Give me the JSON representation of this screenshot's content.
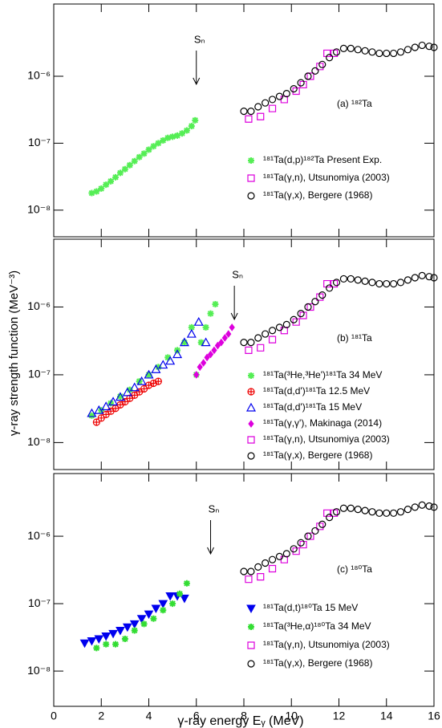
{
  "chart_data": [
    {
      "type": "scatter",
      "log_y": true,
      "xlim": [
        0,
        16
      ],
      "xticks": [
        0,
        2,
        4,
        6,
        8,
        10,
        12,
        14,
        16
      ],
      "ylim": [
        4e-09,
        1.2e-05
      ],
      "yticks": [
        {
          "value": 1e-08,
          "label": "10⁻⁸"
        },
        {
          "value": 1e-07,
          "label": "10⁻⁷"
        },
        {
          "value": 1e-06,
          "label": "10⁻⁶"
        }
      ],
      "ylabel": "γ-ray strength function (MeV⁻³)",
      "panel_label": "(a) ¹⁸²Ta",
      "threshold": {
        "label": "Sₙ",
        "x": 6.0
      },
      "legend": "lower right",
      "series": [
        {
          "name": "¹⁸¹Ta(d,p)¹⁸²Ta Present Exp.",
          "color": "#55ee55",
          "marker": "star",
          "x": [
            1.6,
            1.8,
            2.0,
            2.2,
            2.4,
            2.6,
            2.8,
            3.0,
            3.2,
            3.4,
            3.6,
            3.8,
            4.0,
            4.2,
            4.4,
            4.6,
            4.8,
            5.0,
            5.2,
            5.4,
            5.6,
            5.8,
            5.95
          ],
          "values": [
            1.8e-08,
            1.9e-08,
            2.1e-08,
            2.4e-08,
            2.7e-08,
            3.1e-08,
            3.6e-08,
            4.1e-08,
            4.7e-08,
            5.4e-08,
            6.2e-08,
            7e-08,
            8e-08,
            9e-08,
            1e-07,
            1.1e-07,
            1.2e-07,
            1.25e-07,
            1.3e-07,
            1.4e-07,
            1.55e-07,
            1.8e-07,
            2.2e-07
          ]
        },
        {
          "name": "¹⁸¹Ta(γ,n), Utsunomiya (2003)",
          "color": "#dd00dd",
          "marker": "open-square",
          "x": [
            8.2,
            8.7,
            9.2,
            9.7,
            10.2,
            10.5,
            10.8,
            11.2,
            11.5,
            11.8
          ],
          "values": [
            2.3e-07,
            2.5e-07,
            3.3e-07,
            4.5e-07,
            6e-07,
            7.5e-07,
            1e-06,
            1.4e-06,
            2.2e-06,
            2.2e-06
          ]
        },
        {
          "name": "¹⁸¹Ta(γ,x), Bergere (1968)",
          "color": "#000000",
          "marker": "open-circle",
          "x": [
            8.0,
            8.3,
            8.6,
            8.9,
            9.2,
            9.5,
            9.8,
            10.1,
            10.4,
            10.7,
            11.0,
            11.3,
            11.6,
            11.9,
            12.2,
            12.5,
            12.8,
            13.1,
            13.4,
            13.7,
            14.0,
            14.3,
            14.6,
            14.9,
            15.2,
            15.5,
            15.8,
            16.0
          ],
          "values": [
            3e-07,
            3e-07,
            3.5e-07,
            4e-07,
            4.5e-07,
            5e-07,
            5.5e-07,
            6.5e-07,
            8e-07,
            1e-06,
            1.2e-06,
            1.5e-06,
            1.9e-06,
            2.3e-06,
            2.6e-06,
            2.6e-06,
            2.5e-06,
            2.4e-06,
            2.3e-06,
            2.2e-06,
            2.2e-06,
            2.2e-06,
            2.3e-06,
            2.5e-06,
            2.7e-06,
            2.9e-06,
            2.8e-06,
            2.7e-06
          ]
        }
      ]
    },
    {
      "type": "scatter",
      "log_y": true,
      "xlim": [
        0,
        16
      ],
      "xticks": [
        0,
        2,
        4,
        6,
        8,
        10,
        12,
        14,
        16
      ],
      "ylim": [
        4e-09,
        1e-05
      ],
      "yticks": [
        {
          "value": 1e-08,
          "label": "10⁻⁸"
        },
        {
          "value": 1e-07,
          "label": "10⁻⁷"
        },
        {
          "value": 1e-06,
          "label": "10⁻⁶"
        }
      ],
      "panel_label": "(b) ¹⁸¹Ta",
      "threshold": {
        "label": "Sₙ",
        "x": 7.6
      },
      "legend": "lower right",
      "series": [
        {
          "name": "¹⁸¹Ta(³He,³He')¹⁸¹Ta 34 MeV",
          "color": "#55ee55",
          "marker": "star",
          "x": [
            1.6,
            2.0,
            2.4,
            2.8,
            3.2,
            3.6,
            4.0,
            4.4,
            4.8,
            5.2,
            5.5,
            5.8,
            6.0,
            6.2,
            6.4,
            6.6,
            6.8
          ],
          "values": [
            2.5e-08,
            3e-08,
            3.8e-08,
            4.8e-08,
            6e-08,
            8e-08,
            1e-07,
            1.3e-07,
            1.8e-07,
            2.3e-07,
            3e-07,
            5e-07,
            1e-07,
            3e-07,
            5e-07,
            8e-07,
            1.1e-06
          ]
        },
        {
          "name": "¹⁸¹Ta(d,d')¹⁸¹Ta 12.5 MeV",
          "color": "#ee0000",
          "marker": "circle-plus",
          "x": [
            1.8,
            2.0,
            2.2,
            2.4,
            2.6,
            2.8,
            3.0,
            3.2,
            3.4,
            3.6,
            3.8,
            4.0,
            4.2,
            4.4
          ],
          "values": [
            2e-08,
            2.3e-08,
            2.6e-08,
            2.9e-08,
            3.2e-08,
            3.6e-08,
            4e-08,
            4.5e-08,
            5e-08,
            5.6e-08,
            6.2e-08,
            7e-08,
            7.5e-08,
            8e-08
          ]
        },
        {
          "name": "¹⁸¹Ta(d,d')¹⁸¹Ta 15 MeV",
          "color": "#0000ee",
          "marker": "open-triangle",
          "x": [
            1.6,
            1.9,
            2.2,
            2.5,
            2.8,
            3.1,
            3.4,
            3.7,
            4.0,
            4.3,
            4.6,
            4.9,
            5.2,
            5.5,
            5.8,
            6.1,
            6.4
          ],
          "values": [
            2.7e-08,
            3e-08,
            3.4e-08,
            4e-08,
            4.7e-08,
            5.5e-08,
            6.5e-08,
            8e-08,
            1e-07,
            1.2e-07,
            1.4e-07,
            1.6e-07,
            2e-07,
            3e-07,
            4e-07,
            6e-07,
            3e-07
          ]
        },
        {
          "name": "¹⁸¹Ta(γ,γ'), Makinaga (2014)",
          "color": "#dd00dd",
          "marker": "diamond",
          "x": [
            6.0,
            6.15,
            6.3,
            6.45,
            6.6,
            6.75,
            6.9,
            7.05,
            7.2,
            7.35,
            7.5
          ],
          "values": [
            1e-07,
            1.3e-07,
            1.5e-07,
            1.8e-07,
            2e-07,
            2.3e-07,
            2.7e-07,
            3e-07,
            3.5e-07,
            4e-07,
            5e-07
          ]
        },
        {
          "name": "¹⁸¹Ta(γ,n), Utsunomiya (2003)",
          "color": "#dd00dd",
          "marker": "open-square",
          "x": [
            8.2,
            8.7,
            9.2,
            9.7,
            10.2,
            10.5,
            10.8,
            11.2,
            11.5,
            11.8
          ],
          "values": [
            2.3e-07,
            2.5e-07,
            3.3e-07,
            4.5e-07,
            6e-07,
            7.5e-07,
            1e-06,
            1.4e-06,
            2.2e-06,
            2.2e-06
          ]
        },
        {
          "name": "¹⁸¹Ta(γ,x), Bergere (1968)",
          "color": "#000000",
          "marker": "open-circle",
          "x": [
            8.0,
            8.3,
            8.6,
            8.9,
            9.2,
            9.5,
            9.8,
            10.1,
            10.4,
            10.7,
            11.0,
            11.3,
            11.6,
            11.9,
            12.2,
            12.5,
            12.8,
            13.1,
            13.4,
            13.7,
            14.0,
            14.3,
            14.6,
            14.9,
            15.2,
            15.5,
            15.8,
            16.0
          ],
          "values": [
            3e-07,
            3e-07,
            3.5e-07,
            4e-07,
            4.5e-07,
            5e-07,
            5.5e-07,
            6.5e-07,
            8e-07,
            1e-06,
            1.2e-06,
            1.5e-06,
            1.9e-06,
            2.3e-06,
            2.6e-06,
            2.6e-06,
            2.5e-06,
            2.4e-06,
            2.3e-06,
            2.2e-06,
            2.2e-06,
            2.2e-06,
            2.3e-06,
            2.5e-06,
            2.7e-06,
            2.9e-06,
            2.8e-06,
            2.7e-06
          ]
        }
      ]
    },
    {
      "type": "scatter",
      "log_y": true,
      "xlim": [
        0,
        16
      ],
      "xticks": [
        0,
        2,
        4,
        6,
        8,
        10,
        12,
        14,
        16
      ],
      "ylim": [
        3e-09,
        8.5e-06
      ],
      "yticks": [
        {
          "value": 1e-08,
          "label": "10⁻⁸"
        },
        {
          "value": 1e-07,
          "label": "10⁻⁷"
        },
        {
          "value": 1e-06,
          "label": "10⁻⁶"
        }
      ],
      "xlabel": "γ-ray energy Eᵧ (MeV)",
      "show_xtick_labels": true,
      "panel_label": "(c) ¹⁸⁰Ta",
      "threshold": {
        "label": "Sₙ",
        "x": 6.6
      },
      "legend": "lower right",
      "series": [
        {
          "name": "¹⁸¹Ta(d,t)¹⁸⁰Ta 15 MeV",
          "color": "#0000ee",
          "marker": "triangle-down",
          "x": [
            1.3,
            1.6,
            1.9,
            2.2,
            2.5,
            2.8,
            3.1,
            3.4,
            3.7,
            4.0,
            4.3,
            4.6,
            4.9,
            5.2,
            5.5
          ],
          "values": [
            2.6e-08,
            2.8e-08,
            3e-08,
            3.3e-08,
            3.6e-08,
            4e-08,
            4.5e-08,
            5e-08,
            6e-08,
            7e-08,
            8.5e-08,
            1e-07,
            1.3e-07,
            1.3e-07,
            1.2e-07
          ]
        },
        {
          "name": "¹⁸¹Ta(³He,α)¹⁸⁰Ta 34 MeV",
          "color": "#33dd33",
          "marker": "star",
          "x": [
            1.8,
            2.2,
            2.6,
            3.0,
            3.4,
            3.8,
            4.2,
            4.6,
            5.0,
            5.3,
            5.6
          ],
          "values": [
            2.2e-08,
            2.5e-08,
            2.5e-08,
            3e-08,
            4e-08,
            5e-08,
            6e-08,
            8e-08,
            1e-07,
            1.4e-07,
            2e-07
          ]
        },
        {
          "name": "¹⁸¹Ta(γ,n), Utsunomiya (2003)",
          "color": "#dd00dd",
          "marker": "open-square",
          "x": [
            8.2,
            8.7,
            9.2,
            9.7,
            10.2,
            10.5,
            10.8,
            11.2,
            11.5,
            11.8
          ],
          "values": [
            2.3e-07,
            2.5e-07,
            3.3e-07,
            4.5e-07,
            6e-07,
            7.5e-07,
            1e-06,
            1.4e-06,
            2.2e-06,
            2.2e-06
          ]
        },
        {
          "name": "¹⁸¹Ta(γ,x), Bergere (1968)",
          "color": "#000000",
          "marker": "open-circle",
          "x": [
            8.0,
            8.3,
            8.6,
            8.9,
            9.2,
            9.5,
            9.8,
            10.1,
            10.4,
            10.7,
            11.0,
            11.3,
            11.6,
            11.9,
            12.2,
            12.5,
            12.8,
            13.1,
            13.4,
            13.7,
            14.0,
            14.3,
            14.6,
            14.9,
            15.2,
            15.5,
            15.8,
            16.0
          ],
          "values": [
            3e-07,
            3e-07,
            3.5e-07,
            4e-07,
            4.5e-07,
            5e-07,
            5.5e-07,
            6.5e-07,
            8e-07,
            1e-06,
            1.2e-06,
            1.5e-06,
            1.9e-06,
            2.3e-06,
            2.6e-06,
            2.6e-06,
            2.5e-06,
            2.4e-06,
            2.3e-06,
            2.2e-06,
            2.2e-06,
            2.2e-06,
            2.3e-06,
            2.5e-06,
            2.7e-06,
            2.9e-06,
            2.8e-06,
            2.7e-06
          ]
        }
      ]
    }
  ]
}
